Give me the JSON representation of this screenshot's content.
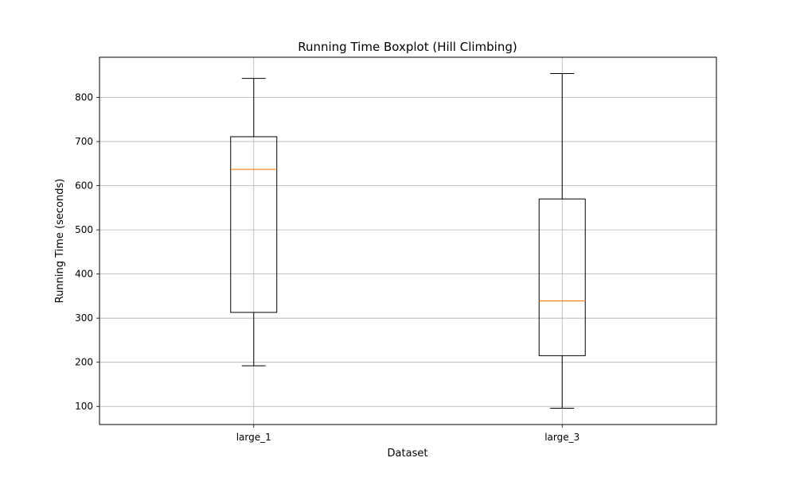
{
  "chart_data": {
    "type": "boxplot",
    "title": "Running Time Boxplot (Hill Climbing)",
    "xlabel": "Dataset",
    "ylabel": "Running Time (seconds)",
    "categories": [
      "large_1",
      "large_3"
    ],
    "boxes": [
      {
        "category": "large_1",
        "whisker_low": 192,
        "q1": 313,
        "median": 637,
        "q3": 711,
        "whisker_high": 843
      },
      {
        "category": "large_3",
        "whisker_low": 96,
        "q1": 215,
        "median": 339,
        "q3": 570,
        "whisker_high": 854
      }
    ],
    "ylim": [
      59,
      891
    ],
    "yticks": [
      100,
      200,
      300,
      400,
      500,
      600,
      700,
      800
    ],
    "grid": true,
    "colors": {
      "box": "#000000",
      "median": "#ff7f0e",
      "grid": "#b0b0b0"
    }
  }
}
